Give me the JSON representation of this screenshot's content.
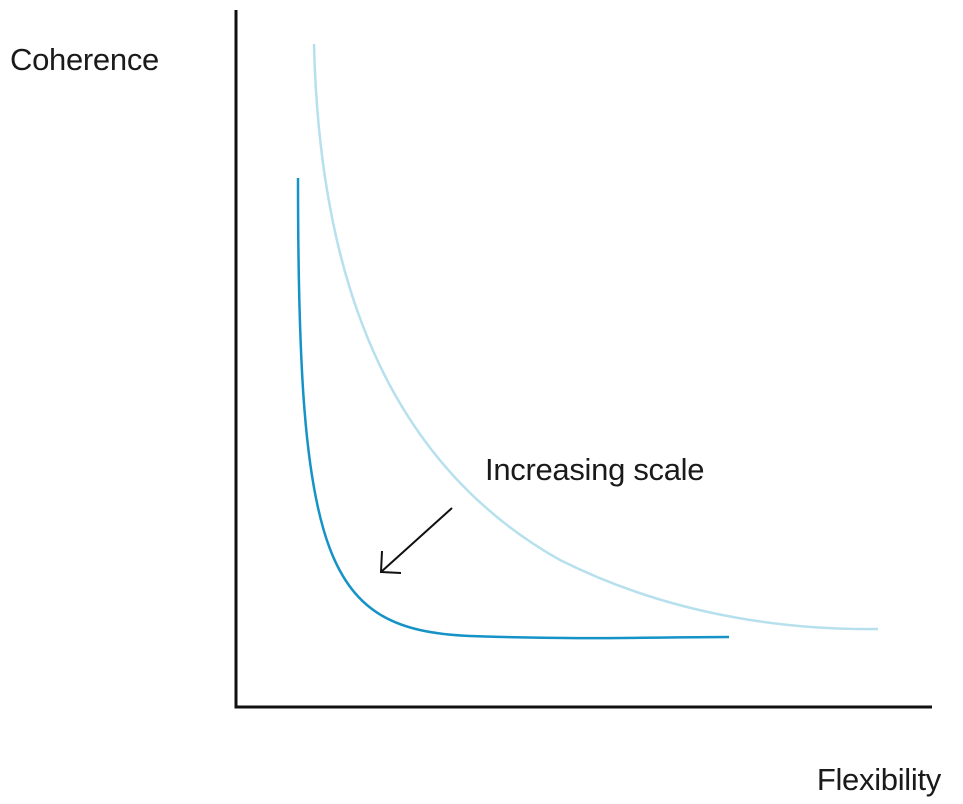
{
  "y_axis_label": "Coherence",
  "x_axis_label": "Flexibility",
  "annotation": "Increasing scale",
  "colors": {
    "axis": "#111111",
    "curve_light": "#b7e0ee",
    "curve_dark": "#1593c6",
    "text": "#1a1a1a"
  }
}
